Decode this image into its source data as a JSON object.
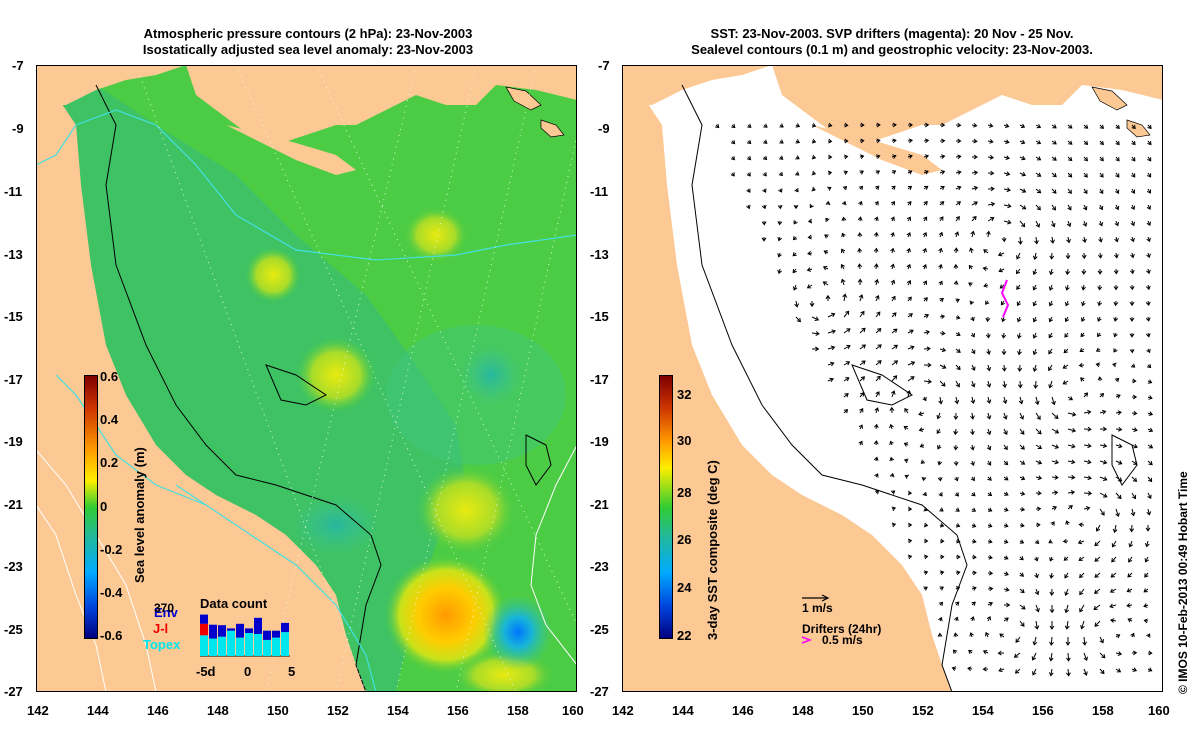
{
  "left_panel": {
    "title_line1": "Atmospheric pressure contours (2 hPa): 23-Nov-2003",
    "title_line2": "Isostatically adjusted sea level anomaly: 23-Nov-2003",
    "colorbar": {
      "label": "Sea level anomaly (m)",
      "ticks": [
        "0.6",
        "0.4",
        "0.2",
        "0",
        "-0.2",
        "-0.4",
        "-0.6"
      ],
      "colors": {
        "top": "#7f0000",
        "mid_high": "#ffb000",
        "mid": "#33cc33",
        "mid_low": "#00aaff",
        "bottom": "#000080"
      }
    },
    "data_count": {
      "title": "Data count",
      "max_label": "370",
      "legend": [
        {
          "label": "Env",
          "color": "#0000cc"
        },
        {
          "label": "J-l",
          "color": "#ee0000"
        },
        {
          "label": "Topex",
          "color": "#00e5ee"
        }
      ],
      "x_ticks": [
        "-5d",
        "0",
        "5"
      ],
      "bars_topex": [
        0.45,
        0.38,
        0.42,
        0.55,
        0.4,
        0.5,
        0.48,
        0.35,
        0.4,
        0.52
      ],
      "bars_env": [
        0.2,
        0.3,
        0.25,
        0.05,
        0.3,
        0.1,
        0.35,
        0.2,
        0.15,
        0.2
      ],
      "bars_jl": [
        0.25,
        0.0,
        0.0,
        0.0,
        0.0,
        0.0,
        0.0,
        0.0,
        0.0,
        0.0
      ]
    }
  },
  "right_panel": {
    "title_line1": "SST: 23-Nov-2003. SVP drifters (magenta): 20 Nov - 25 Nov.",
    "title_line2": "Sealevel contours (0.1 m) and geostrophic velocity: 23-Nov-2003.",
    "colorbar": {
      "label": "3-day SST composite (deg C)",
      "ticks": [
        "32",
        "30",
        "28",
        "26",
        "24",
        "22"
      ]
    },
    "velocity_key": "1 m/s",
    "drifters_label": "Drifters (24hr)",
    "drifters_speed": "0.5 m/s",
    "drifter_color": "#ff00ff"
  },
  "y_ticks": [
    "-7",
    "-9",
    "-11",
    "-13",
    "-15",
    "-17",
    "-19",
    "-21",
    "-23",
    "-25",
    "-27"
  ],
  "x_ticks": [
    "142",
    "144",
    "146",
    "148",
    "150",
    "152",
    "154",
    "156",
    "158",
    "160"
  ],
  "stamp": "© IMOS 10-Feb-2013 00:49 Hobart Time",
  "colors": {
    "land": "#fcc894",
    "ocean_green": "#4ccc44",
    "shelf": "#33b871"
  }
}
